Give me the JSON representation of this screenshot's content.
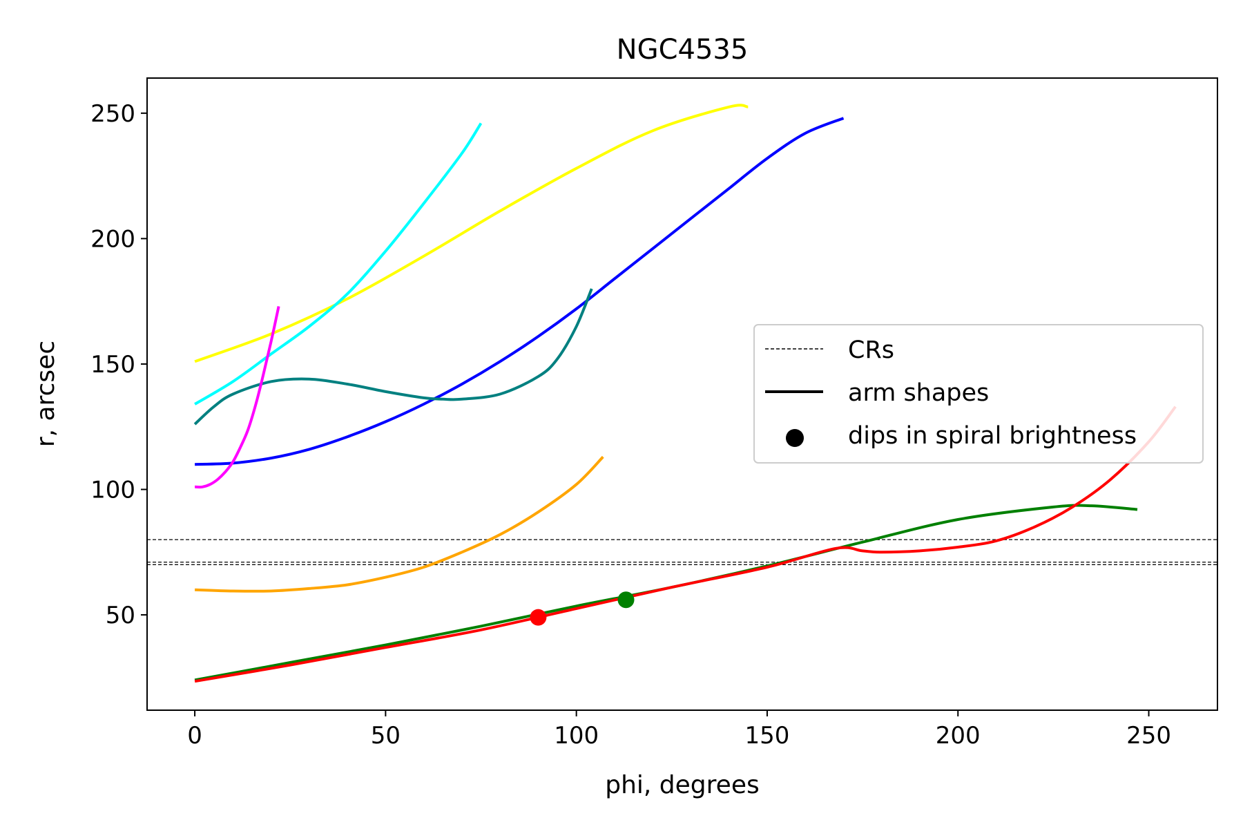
{
  "chart_data": {
    "type": "line",
    "title": "NGC4535",
    "xlabel": "phi, degrees",
    "ylabel": "r, arcsec",
    "xlim": [
      -12.5,
      268
    ],
    "ylim": [
      12,
      264
    ],
    "xticks": [
      0,
      50,
      100,
      150,
      200,
      250
    ],
    "yticks": [
      50,
      100,
      150,
      200,
      250
    ],
    "grid": false,
    "legend_position": "right",
    "legend": [
      {
        "label": "CRs",
        "style": "dashed"
      },
      {
        "label": "arm shapes",
        "style": "solid"
      },
      {
        "label": "dips in spiral brightness",
        "style": "marker"
      }
    ],
    "crs": [
      80,
      71,
      70
    ],
    "series": [
      {
        "color": "#ffff00",
        "x": [
          0,
          20,
          40,
          60,
          80,
          100,
          120,
          140,
          145
        ],
        "y": [
          151,
          162,
          176,
          193,
          211,
          228,
          243,
          252.5,
          252.5
        ]
      },
      {
        "color": "#00ffff",
        "x": [
          0,
          10,
          20,
          30,
          40,
          50,
          60,
          70,
          75
        ],
        "y": [
          134,
          143,
          154,
          165,
          178,
          195,
          214,
          234,
          246
        ]
      },
      {
        "color": "#0000ff",
        "x": [
          0,
          10,
          20,
          30,
          40,
          50,
          60,
          70,
          80,
          90,
          100,
          110,
          120,
          130,
          140,
          150,
          160,
          170
        ],
        "y": [
          110,
          110.5,
          112.5,
          116,
          121,
          127,
          134,
          142,
          151,
          161,
          172,
          184,
          196,
          208,
          220,
          232,
          242,
          248
        ]
      },
      {
        "color": "#008080",
        "x": [
          0,
          5,
          10,
          20,
          30,
          40,
          50,
          60,
          65,
          70,
          80,
          90,
          95,
          100,
          104
        ],
        "y": [
          126,
          133,
          138,
          143,
          144,
          142,
          139,
          136.5,
          136,
          136,
          138,
          145,
          152,
          165,
          180
        ]
      },
      {
        "color": "#ff00ff",
        "x": [
          0,
          2,
          4,
          6,
          8,
          10,
          12,
          14,
          16,
          18,
          20,
          22
        ],
        "y": [
          101,
          101,
          102,
          104,
          107,
          111,
          117,
          124,
          134,
          146,
          159,
          173
        ]
      },
      {
        "color": "#ffa500",
        "x": [
          0,
          10,
          20,
          30,
          40,
          50,
          60,
          70,
          80,
          90,
          100,
          107
        ],
        "y": [
          60,
          59.5,
          59.5,
          60.5,
          62,
          65,
          69,
          75,
          82,
          91,
          102,
          113
        ]
      },
      {
        "color": "#008000",
        "x": [
          0,
          25,
          50,
          75,
          100,
          125,
          150,
          175,
          200,
          225,
          235,
          247
        ],
        "y": [
          24,
          31,
          38,
          45.5,
          53.5,
          61,
          69.5,
          79,
          88,
          93,
          93.5,
          92
        ]
      },
      {
        "color": "#ff0000",
        "x": [
          0,
          25,
          50,
          75,
          100,
          125,
          150,
          168,
          175,
          180,
          190,
          200,
          210,
          220,
          230,
          240,
          250,
          257
        ],
        "y": [
          23.5,
          30,
          37,
          44,
          52.5,
          61,
          69,
          76.5,
          75.5,
          75,
          75.5,
          77,
          79.5,
          85,
          93,
          104,
          119,
          133
        ]
      }
    ],
    "points": [
      {
        "x": 90,
        "y": 49,
        "color": "#ff0000"
      },
      {
        "x": 113,
        "y": 56,
        "color": "#008000"
      }
    ]
  }
}
